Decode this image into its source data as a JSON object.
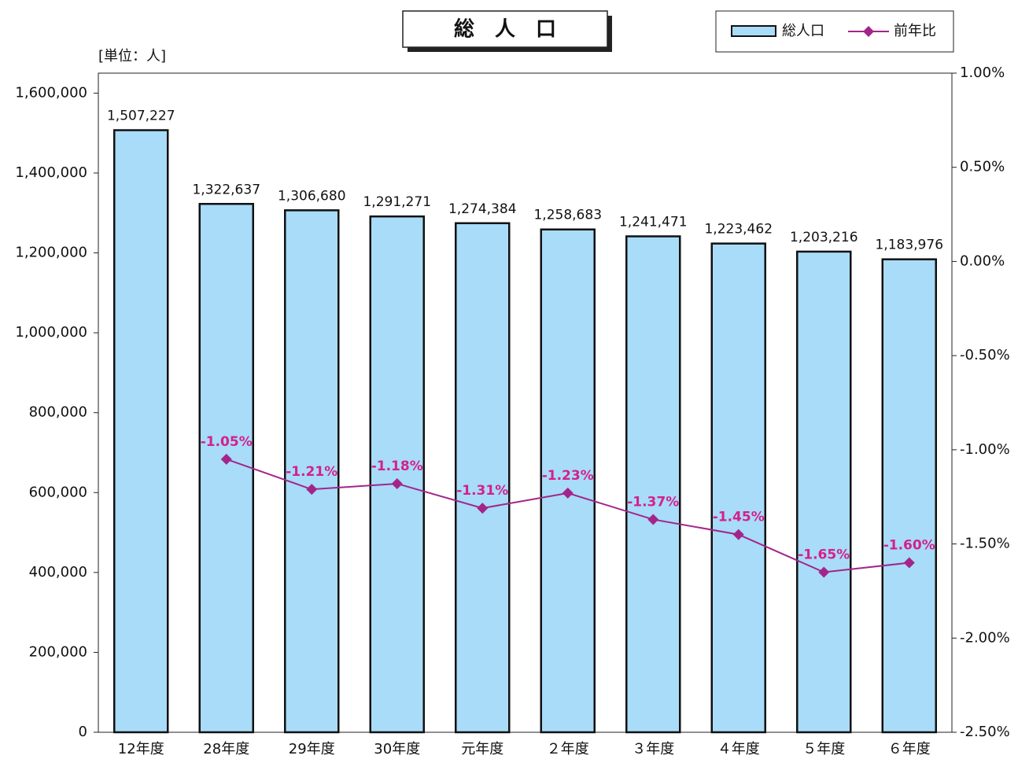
{
  "chart_data": {
    "type": "bar_line",
    "title": "総　人　口",
    "y_label": "[単位：人]",
    "categories": [
      "12年度",
      "28年度",
      "29年度",
      "30年度",
      "元年度",
      "２年度",
      "３年度",
      "４年度",
      "５年度",
      "６年度"
    ],
    "series": [
      {
        "name": "総人口",
        "color": "#a8dcf8",
        "type": "bar",
        "values": [
          1507227,
          1322637,
          1306680,
          1291271,
          1274384,
          1258683,
          1241471,
          1223462,
          1203216,
          1183976
        ],
        "value_labels": [
          "1,507,227",
          "1,322,637",
          "1,306,680",
          "1,291,271",
          "1,274,384",
          "1,258,683",
          "1,241,471",
          "1,223,462",
          "1,203,216",
          "1,183,976"
        ]
      },
      {
        "name": "前年比",
        "color": "#a3258a",
        "label_color": "#d4208e",
        "type": "line",
        "axis": "y2",
        "values": [
          null,
          -1.05,
          -1.21,
          -1.18,
          -1.31,
          -1.23,
          -1.37,
          -1.45,
          -1.65,
          -1.6
        ],
        "value_labels": [
          null,
          "-1.05%",
          "-1.21%",
          "-1.18%",
          "-1.31%",
          "-1.23%",
          "-1.37%",
          "-1.45%",
          "-1.65%",
          "-1.60%"
        ]
      }
    ],
    "ylim": [
      0,
      1650000
    ],
    "yticks": [
      0,
      {
        "value": 200000,
        "label": "200,000"
      },
      {
        "value": 400000,
        "label": "400,000"
      },
      {
        "value": 600000,
        "label": "600,000"
      },
      {
        "value": 800000,
        "label": "800,000"
      },
      {
        "value": 1000000,
        "label": "1,000,000"
      },
      {
        "value": 1200000,
        "label": "1,200,000"
      },
      {
        "value": 1400000,
        "label": "1,400,000"
      },
      {
        "value": 1600000,
        "label": "1,600,000"
      }
    ],
    "y2lim": [
      -2.5,
      1.0
    ],
    "y2ticks": [
      {
        "value": -2.5,
        "label": "-2.50%"
      },
      {
        "value": -2.0,
        "label": "-2.00%"
      },
      {
        "value": -1.5,
        "label": "-1.50%"
      },
      {
        "value": -1.0,
        "label": "-1.00%"
      },
      {
        "value": -0.5,
        "label": "-0.50%"
      },
      {
        "value": 0,
        "label": "0.00%"
      },
      {
        "value": 0.5,
        "label": "0.50%"
      },
      {
        "value": 1.0,
        "label": "1.00%"
      }
    ],
    "legend": "top-right"
  }
}
